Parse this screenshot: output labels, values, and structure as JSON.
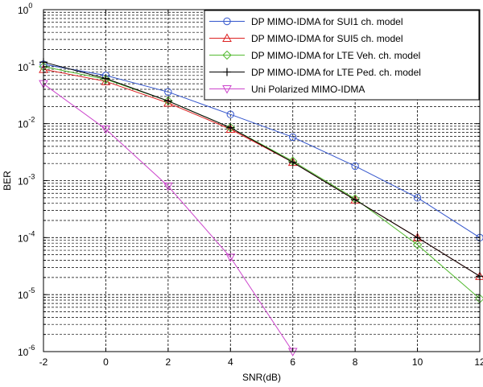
{
  "chart_data": {
    "type": "line",
    "title": "",
    "xlabel": "SNR(dB)",
    "ylabel": "BER",
    "xlim": [
      -2,
      12
    ],
    "ylim": [
      1e-06,
      1
    ],
    "yscale": "log",
    "grid": true,
    "legend_position": "top-right",
    "xticks": [
      -2,
      0,
      2,
      4,
      6,
      8,
      10,
      12
    ],
    "xtick_labels": [
      "-2",
      "0",
      "2",
      "4",
      "6",
      "8",
      "10",
      "12"
    ],
    "yticks": [
      {
        "value": 1,
        "base": "10",
        "exp": "0"
      },
      {
        "value": 0.1,
        "base": "10",
        "exp": "-1"
      },
      {
        "value": 0.01,
        "base": "10",
        "exp": "-2"
      },
      {
        "value": 0.001,
        "base": "10",
        "exp": "-3"
      },
      {
        "value": 0.0001,
        "base": "10",
        "exp": "-4"
      },
      {
        "value": 1e-05,
        "base": "10",
        "exp": "-5"
      },
      {
        "value": 1e-06,
        "base": "10",
        "exp": "-6"
      }
    ],
    "series": [
      {
        "name": "DP MIMO-IDMA for SUI1 ch. model",
        "color": "#3355cc",
        "marker": "circle",
        "x": [
          -2,
          0,
          2,
          4,
          6,
          8,
          10,
          12
        ],
        "y": [
          0.11,
          0.07,
          0.036,
          0.0145,
          0.0058,
          0.0018,
          0.0005,
          0.0001
        ]
      },
      {
        "name": "DP MIMO-IDMA for SUI5 ch. model",
        "color": "#dd2222",
        "marker": "triangle-up",
        "x": [
          -2,
          0,
          2,
          4,
          6,
          8,
          10,
          12
        ],
        "y": [
          0.09,
          0.055,
          0.023,
          0.008,
          0.0021,
          0.00046,
          0.0001,
          2.1e-05
        ]
      },
      {
        "name": "DP MIMO-IDMA for LTE Veh. ch. model",
        "color": "#55bb33",
        "marker": "diamond",
        "x": [
          -2,
          0,
          2,
          4,
          6,
          8,
          10,
          12
        ],
        "y": [
          0.1,
          0.06,
          0.025,
          0.0085,
          0.0022,
          0.00048,
          7.5e-05,
          8.5e-06
        ]
      },
      {
        "name": "DP MIMO-IDMA for LTE Ped. ch. model",
        "color": "#000000",
        "marker": "plus",
        "x": [
          -2,
          0,
          2,
          4,
          6,
          8,
          10,
          12
        ],
        "y": [
          0.12,
          0.062,
          0.025,
          0.0085,
          0.0021,
          0.00046,
          0.0001,
          2.1e-05
        ]
      },
      {
        "name": "Uni Polarized MIMO-IDMA",
        "color": "#cc44cc",
        "marker": "triangle-down",
        "x": [
          -2,
          0,
          2,
          4,
          6
        ],
        "y": [
          0.05,
          0.008,
          0.0008,
          4.5e-05,
          1e-06
        ]
      }
    ]
  }
}
